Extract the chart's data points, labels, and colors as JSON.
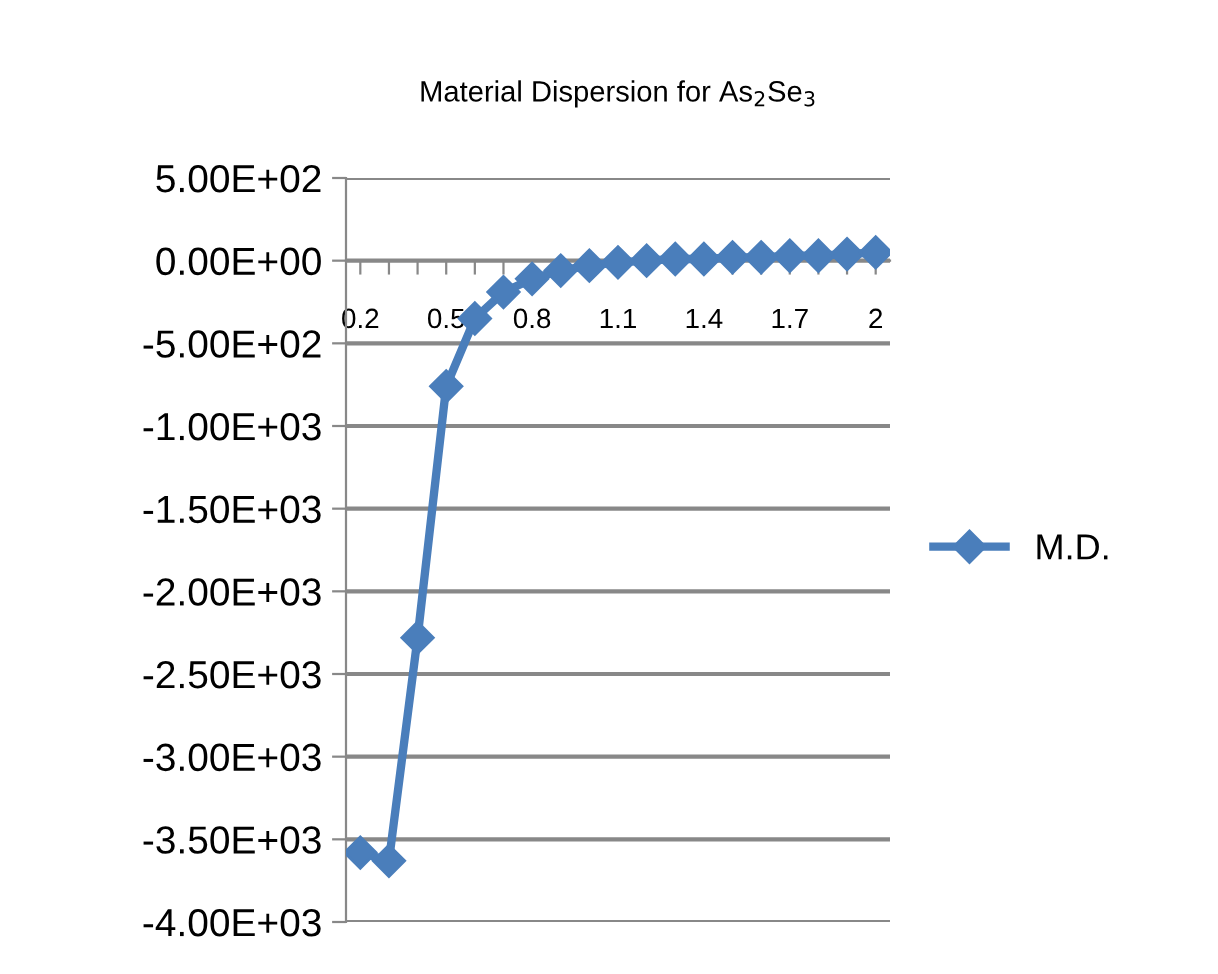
{
  "chart_data": {
    "type": "line",
    "title": "Material Dispersion for As$_{2}$Se$_{3}$",
    "categories": [
      "0.2",
      null,
      null,
      "0.5",
      null,
      null,
      "0.8",
      null,
      null,
      "1.1",
      null,
      null,
      "1.4",
      null,
      null,
      "1.7",
      null,
      null,
      "2"
    ],
    "series": [
      {
        "name": "M.D.",
        "color": "#4a7ebb",
        "values": [
          -3580,
          -3630,
          -2280,
          -760,
          -350,
          -190,
          -110,
          -60,
          -30,
          -10,
          0,
          10,
          10,
          20,
          20,
          30,
          30,
          40,
          50
        ]
      }
    ],
    "ylim": [
      -4000,
      500
    ],
    "yticks": [
      {
        "value": 500,
        "label": "5.00E+02"
      },
      {
        "value": 0,
        "label": "0.00E+00"
      },
      {
        "value": -500,
        "label": "-5.00E+02"
      },
      {
        "value": -1000,
        "label": "-1.00E+03"
      },
      {
        "value": -1500,
        "label": "-1.50E+03"
      },
      {
        "value": -2000,
        "label": "-2.00E+03"
      },
      {
        "value": -2500,
        "label": "-2.50E+03"
      },
      {
        "value": -3000,
        "label": "-3.00E+03"
      },
      {
        "value": -3500,
        "label": "-3.50E+03"
      },
      {
        "value": -4000,
        "label": "-4.00E+03"
      }
    ],
    "grid": "y",
    "legend": "right",
    "marker": "diamond",
    "line_style": "solid"
  }
}
